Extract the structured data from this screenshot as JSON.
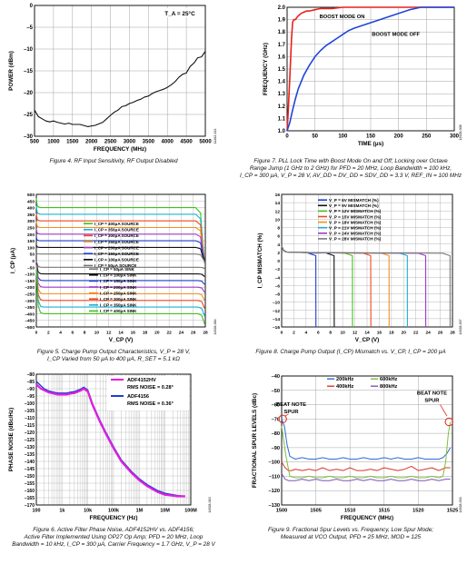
{
  "fig4": {
    "caption": "Figure 4. RF Input Sensitivity, RF Output Disabled",
    "code": "11462-113",
    "chart_data": {
      "type": "line",
      "xlabel": "FREQUENCY (MHz)",
      "ylabel": "POWER (dBm)",
      "annotation": "T_A = 25°C",
      "xlim": [
        500,
        5000
      ],
      "ylim": [
        -30,
        0
      ],
      "xticks": [
        "500",
        "1000",
        "1500",
        "2000",
        "2500",
        "3000",
        "3500",
        "4000",
        "4500",
        "5000"
      ],
      "yticks": [
        "0",
        "–5",
        "–10",
        "–15",
        "–20",
        "–25",
        "–30"
      ],
      "series": [
        {
          "x": [
            500,
            600,
            700,
            800,
            900,
            1000,
            1100,
            1200,
            1300,
            1400,
            1500,
            1700,
            1900,
            2100,
            2300,
            2400,
            2500,
            2600,
            2700,
            2800,
            2900,
            3000,
            3100,
            3200,
            3300,
            3400,
            3500,
            3600,
            3700,
            3800,
            3900,
            4000,
            4100,
            4200,
            4300,
            4400,
            4500,
            4600,
            4700,
            4800,
            4900,
            5000
          ],
          "y": [
            -24,
            -25.5,
            -26,
            -26.5,
            -26.7,
            -26.5,
            -26.8,
            -27,
            -27.2,
            -27,
            -27.3,
            -27.3,
            -27.8,
            -27.5,
            -26.8,
            -26,
            -25.2,
            -24.5,
            -24,
            -23.2,
            -23,
            -22.5,
            -22.2,
            -21.8,
            -21.5,
            -21,
            -20.8,
            -20.2,
            -19.8,
            -19.5,
            -19.2,
            -18.8,
            -18.2,
            -17.5,
            -16.5,
            -15.8,
            -15.5,
            -14,
            -13.2,
            -12,
            -11.8,
            -10.5
          ]
        }
      ]
    }
  },
  "fig7": {
    "caption_lines": [
      "Figure 7. PLL Lock Time with Boost Mode On and Off; Locking over Octave",
      "Range Jump (1 GHz to 2 GHz) for PFD = 20 MHz, Loop Bandwidth = 100 kHz,",
      "I_CP = 300 μA, V_P = 28 V, AV_DD = DV_DD = SDV_DD = 3.3 V, REF_IN = 100 MHz"
    ],
    "code": "14928-008",
    "chart_data": {
      "type": "line",
      "xlabel": "TIME (μs)",
      "ylabel": "FREQUENCY (GHz)",
      "xlim": [
        0,
        300
      ],
      "ylim": [
        1.0,
        2.0
      ],
      "xticks": [
        "0",
        "50",
        "100",
        "150",
        "200",
        "250",
        "300"
      ],
      "yticks": [
        "1.0",
        "1.1",
        "1.2",
        "1.3",
        "1.4",
        "1.5",
        "1.6",
        "1.7",
        "1.8",
        "1.9",
        "2.0"
      ],
      "series": [
        {
          "name": "BOOST MODE ON",
          "color": "#e8221b",
          "x": [
            0,
            2,
            5,
            8,
            10,
            12,
            15,
            18,
            20,
            25,
            30,
            35,
            40,
            50,
            60,
            80,
            100,
            130,
            160,
            200,
            240,
            300
          ],
          "y": [
            1.0,
            1.15,
            1.45,
            1.75,
            1.88,
            1.9,
            1.9,
            1.92,
            1.93,
            1.95,
            1.96,
            1.97,
            1.97,
            1.98,
            1.99,
            1.99,
            2.0,
            2.0,
            2.0,
            2.0,
            2.0,
            2.0
          ]
        },
        {
          "name": "BOOST MODE OFF",
          "color": "#2046d8",
          "x": [
            0,
            5,
            10,
            15,
            20,
            30,
            40,
            50,
            60,
            70,
            80,
            90,
            100,
            110,
            120,
            140,
            160,
            180,
            200,
            220,
            230,
            240,
            260,
            300
          ],
          "y": [
            1.0,
            1.07,
            1.17,
            1.26,
            1.34,
            1.45,
            1.53,
            1.6,
            1.65,
            1.69,
            1.72,
            1.75,
            1.78,
            1.81,
            1.83,
            1.86,
            1.89,
            1.92,
            1.95,
            1.98,
            1.99,
            2.0,
            2.0,
            2.0
          ]
        }
      ]
    }
  },
  "fig5": {
    "caption_lines": [
      "Figure 5. Charge Pump Output Characteristics, V_P = 28 V,",
      "I_CP Varied from 50 μA to 400 μA, R_SET = 5.1 kΩ"
    ],
    "code": "14928-084",
    "chart_data": {
      "type": "line",
      "xlabel": "V_CP (V)",
      "ylabel": "I_CP (μA)",
      "xlim": [
        0,
        28
      ],
      "ylim": [
        -500,
        500
      ],
      "xticks": [
        "0",
        "2",
        "4",
        "6",
        "8",
        "10",
        "12",
        "14",
        "16",
        "18",
        "20",
        "22",
        "24",
        "26",
        "28"
      ],
      "yticks": [
        "500",
        "450",
        "400",
        "350",
        "300",
        "250",
        "200",
        "150",
        "100",
        "50",
        "0",
        "–50",
        "–100",
        "–150",
        "–200",
        "–250",
        "–300",
        "–350",
        "–400",
        "–450",
        "–500"
      ],
      "series": [
        {
          "name": "I_CP = 400μA SOURCE",
          "color": "#41c21c",
          "level": 400
        },
        {
          "name": "I_CP = 350μA SOURCE",
          "color": "#1bb0d6",
          "level": 350
        },
        {
          "name": "I_CP = 300μA SOURCE",
          "color": "#ee4a1d",
          "level": 300
        },
        {
          "name": "I_CP = 250μA SOURCE",
          "color": "#f48f1c",
          "level": 250
        },
        {
          "name": "I_CP = 200μA SOURCE",
          "color": "#a038c8",
          "level": 200
        },
        {
          "name": "I_CP = 150μA SOURCE",
          "color": "#1d3fd0",
          "level": 150
        },
        {
          "name": "I_CP = 100μA SOURCE",
          "color": "#111111",
          "level": 100
        },
        {
          "name": "I_CP = 50μA SOURCE",
          "color": "#7a7a7a",
          "level": 50
        },
        {
          "name": "I_CP = 50μA SINK",
          "color": "#7a7a7a",
          "level": -50
        },
        {
          "name": "I_CP = 100μA SINK",
          "color": "#111111",
          "level": -100
        },
        {
          "name": "I_CP = 150μA SINK",
          "color": "#1d3fd0",
          "level": -150
        },
        {
          "name": "I_CP = 200μA SINK",
          "color": "#a038c8",
          "level": -200
        },
        {
          "name": "I_CP = 250μA SINK",
          "color": "#f48f1c",
          "level": -250
        },
        {
          "name": "I_CP = 300μA SINK",
          "color": "#ee4a1d",
          "level": -300
        },
        {
          "name": "I_CP = 350μA SINK",
          "color": "#1bb0d6",
          "level": -350
        },
        {
          "name": "I_CP = 400μA SINK",
          "color": "#41c21c",
          "level": -400
        }
      ]
    }
  },
  "fig8": {
    "caption": "Figure 8. Charge Pump Output (I_CP) Mismatch vs. V_CP, I_CP = 200 μA",
    "code": "14928-007",
    "chart_data": {
      "type": "line",
      "xlabel": "V_CP (V)",
      "ylabel": "I_CP MISMATCH (%)",
      "xlim": [
        0,
        28
      ],
      "ylim": [
        -16,
        16
      ],
      "xticks": [
        "0",
        "2",
        "4",
        "6",
        "8",
        "10",
        "12",
        "14",
        "16",
        "18",
        "20",
        "22",
        "24",
        "26",
        "28"
      ],
      "yticks": [
        "16",
        "14",
        "12",
        "10",
        "8",
        "6",
        "4",
        "2",
        "0",
        "–2",
        "–4",
        "–6",
        "–8",
        "–10",
        "–12",
        "–14",
        "–16"
      ],
      "series": [
        {
          "name": "V_P = 6V MISMATCH (%)",
          "color": "#1d3fd0",
          "vp": 6
        },
        {
          "name": "V_P = 9V MISMATCH (%)",
          "color": "#111111",
          "vp": 9
        },
        {
          "name": "V_P = 12V MISMATCH (%)",
          "color": "#41c21c",
          "vp": 12
        },
        {
          "name": "V_P = 15V MISMATCH (%)",
          "color": "#ee4a1d",
          "vp": 15
        },
        {
          "name": "V_P = 18V MISMATCH (%)",
          "color": "#f48f1c",
          "vp": 18
        },
        {
          "name": "V_P = 21V MISMATCH (%)",
          "color": "#1bb0d6",
          "vp": 21
        },
        {
          "name": "V_P = 24V MISMATCH (%)",
          "color": "#a038c8",
          "vp": 24
        },
        {
          "name": "V_P = 28V MISMATCH (%)",
          "color": "#7a7a7a",
          "vp": 28
        }
      ]
    }
  },
  "fig6": {
    "caption_lines": [
      "Figure 6. Active Filter Phase Noise, ADF4152HV vs. ADF4156;",
      "Active Filter Implemented Using OP27 Op Amp; PFD = 20 MHz, Loop",
      "Bandwidth = 10 kHz, I_CP = 300 μA, Carrier Frequency = 1.7 GHz, V_P = 28 V"
    ],
    "code": "14928-010",
    "chart_data": {
      "type": "line",
      "xlabel": "FREQUENCY (Hz)",
      "ylabel": "PHASE NOISE (dBc/Hz)",
      "xscale": "log",
      "xlim": [
        100,
        100000000
      ],
      "ylim": [
        -170,
        -80
      ],
      "xticks": [
        "100",
        "1k",
        "10k",
        "100k",
        "1M",
        "10M",
        "100M"
      ],
      "yticks": [
        "–80",
        "–85",
        "–90",
        "–95",
        "–100",
        "–105",
        "–110",
        "–115",
        "–120",
        "–125",
        "–130",
        "–135",
        "–140",
        "–145",
        "–150",
        "–155",
        "–160",
        "–165",
        "–170"
      ],
      "legend": [
        "ADF4152HV",
        "RMS NOISE = 0.28°",
        "ADF4156",
        "RMS NOISE = 0.36°"
      ],
      "series": [
        {
          "name": "ADF4152HV",
          "color": "#e31ee0",
          "x": [
            100,
            150,
            200,
            300,
            500,
            700,
            1000,
            1500,
            2000,
            3000,
            5000,
            7000,
            10000,
            15000,
            20000,
            30000,
            50000,
            100000,
            200000,
            500000,
            1000000,
            2000000,
            5000000,
            10000000,
            30000000,
            60000000
          ],
          "y": [
            -87,
            -90,
            -91,
            -92.5,
            -93.5,
            -94,
            -94,
            -94,
            -93.5,
            -93,
            -91.5,
            -90,
            -92,
            -101,
            -106,
            -113,
            -121,
            -131,
            -140,
            -148,
            -153,
            -157,
            -161,
            -163,
            -164,
            -164
          ]
        },
        {
          "name": "ADF4156",
          "color": "#1d3fd0",
          "x": [
            100,
            150,
            200,
            300,
            500,
            700,
            1000,
            1500,
            2000,
            3000,
            5000,
            7000,
            10000,
            15000,
            20000,
            30000,
            50000,
            100000,
            200000,
            500000,
            1000000,
            2000000,
            5000000,
            10000000,
            30000000,
            60000000
          ],
          "y": [
            -85,
            -88,
            -90,
            -91.5,
            -92.5,
            -93,
            -93,
            -93,
            -92.5,
            -92,
            -90.5,
            -89,
            -91,
            -100,
            -105,
            -112,
            -120,
            -130,
            -139,
            -147,
            -152,
            -156,
            -160,
            -162,
            -163.5,
            -164
          ]
        }
      ]
    }
  },
  "fig9": {
    "caption_lines": [
      "Figure 9. Fractional Spur Levels vs. Frequency, Low Spur Mode;",
      "Measured at VCO Output, PFD = 25 MHz, MOD = 125"
    ],
    "code": "14928-033",
    "chart_data": {
      "type": "line",
      "xlabel": "FREQUENCY (MHz)",
      "ylabel": "FRACTIONAL SPUR LEVELS (dBc)",
      "xlim": [
        1500,
        1525
      ],
      "ylim": [
        -130,
        -40
      ],
      "xticks": [
        "1500",
        "1505",
        "1510",
        "1515",
        "1520",
        "1525"
      ],
      "yticks": [
        "–40",
        "–50",
        "–60",
        "–70",
        "–80",
        "–90",
        "–100",
        "–110",
        "–120",
        "–130"
      ],
      "annotations": [
        "BEAT NOTE SPUR",
        "BEAT NOTE SPUR"
      ],
      "series": [
        {
          "name": "200kHz",
          "color": "#2e6bd6",
          "x": [
            1500,
            1500.4,
            1500.8,
            1501.2,
            1501.6,
            1502,
            1503,
            1504,
            1505,
            1506,
            1507,
            1508,
            1509,
            1510,
            1511,
            1512,
            1513,
            1514,
            1515,
            1516,
            1517,
            1518,
            1519,
            1520,
            1521,
            1522,
            1523,
            1523.6,
            1524.2,
            1524.7
          ],
          "y": [
            -70,
            -75,
            -88,
            -96,
            -97,
            -98,
            -97,
            -98,
            -98,
            -97,
            -98,
            -98,
            -97,
            -98,
            -98,
            -97,
            -98,
            -98,
            -97,
            -98,
            -97,
            -98,
            -98,
            -97,
            -98,
            -98,
            -98,
            -97,
            -94,
            -90
          ]
        },
        {
          "name": "400kHz",
          "color": "#d8382a",
          "x": [
            1500,
            1500.5,
            1501,
            1501.5,
            1502,
            1503,
            1504,
            1505,
            1506,
            1507,
            1508,
            1509,
            1510,
            1511,
            1512,
            1513,
            1514,
            1515,
            1516,
            1517,
            1518,
            1519,
            1520,
            1521,
            1522,
            1523,
            1524,
            1524.7
          ],
          "y": [
            -100,
            -104,
            -106,
            -106,
            -105,
            -106,
            -105,
            -106,
            -104,
            -106,
            -105,
            -106,
            -104,
            -106,
            -106,
            -105,
            -106,
            -104,
            -105,
            -106,
            -105,
            -103,
            -106,
            -105,
            -104,
            -106,
            -104,
            -104
          ]
        },
        {
          "name": "600kHz",
          "color": "#7fbf3a",
          "x": [
            1500,
            1500.6,
            1501.2,
            1502,
            1503,
            1504,
            1505,
            1506,
            1507,
            1508,
            1509,
            1510,
            1511,
            1512,
            1513,
            1514,
            1515,
            1516,
            1517,
            1518,
            1519,
            1520,
            1521,
            1522,
            1523,
            1523.6,
            1524,
            1524.4,
            1524.7
          ],
          "y": [
            -75,
            -95,
            -110,
            -111,
            -111,
            -110,
            -111,
            -111,
            -110,
            -111,
            -111,
            -110,
            -111,
            -111,
            -110,
            -111,
            -111,
            -110,
            -111,
            -111,
            -110,
            -111,
            -111,
            -110,
            -111,
            -110,
            -100,
            -80,
            -72
          ]
        },
        {
          "name": "800kHz",
          "color": "#7b55b8",
          "x": [
            1500,
            1500.5,
            1501,
            1502,
            1503,
            1504,
            1505,
            1506,
            1507,
            1508,
            1509,
            1510,
            1511,
            1512,
            1513,
            1514,
            1515,
            1516,
            1517,
            1518,
            1519,
            1520,
            1521,
            1522,
            1523,
            1524,
            1524.7
          ],
          "y": [
            -108,
            -112,
            -113,
            -113,
            -112,
            -113,
            -112,
            -113,
            -113,
            -112,
            -113,
            -113,
            -112,
            -113,
            -112,
            -113,
            -113,
            -112,
            -113,
            -113,
            -112,
            -113,
            -113,
            -112,
            -113,
            -112,
            -112
          ]
        }
      ]
    }
  }
}
